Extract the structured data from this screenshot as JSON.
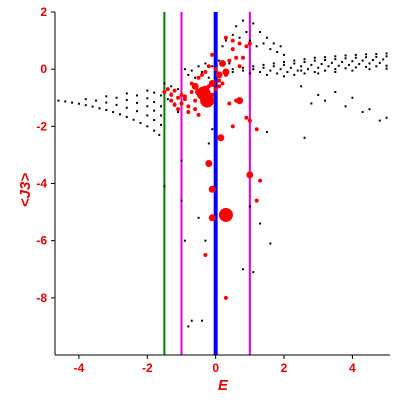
{
  "chart_data": {
    "type": "scatter",
    "xlabel": "E",
    "ylabel": "<J3>",
    "xlim": [
      -4.7,
      5.1
    ],
    "ylim": [
      -10.0,
      2.0
    ],
    "x_ticks": [
      "-4",
      "-2",
      "0",
      "2",
      "4"
    ],
    "x_tick_values": [
      -4,
      -2,
      0,
      2,
      4
    ],
    "y_ticks": [
      "2",
      "0",
      "-2",
      "-4",
      "-6",
      "-8"
    ],
    "y_tick_values": [
      2,
      0,
      -2,
      -4,
      -6,
      -8
    ],
    "vertical_lines": [
      {
        "x": -1.5,
        "color": "#008000"
      },
      {
        "x": -1.0,
        "color": "#dd00dd"
      },
      {
        "x": 0.0,
        "color": "#0000ff"
      },
      {
        "x": 1.0,
        "color": "#dd00dd"
      }
    ],
    "series": [
      {
        "color": "#000000",
        "points": [
          [
            -4.6,
            -1.1
          ],
          [
            -4.4,
            -1.13
          ],
          [
            -4.2,
            -1.17
          ],
          [
            -4.0,
            -1.21
          ],
          [
            -3.8,
            -1.26
          ],
          [
            -3.6,
            -1.31
          ],
          [
            -3.4,
            -1.37
          ],
          [
            -3.2,
            -1.43
          ],
          [
            -3.0,
            -1.5
          ],
          [
            -2.8,
            -1.58
          ],
          [
            -2.6,
            -1.67
          ],
          [
            -2.4,
            -1.77
          ],
          [
            -2.2,
            -1.88
          ],
          [
            -2.0,
            -2.0
          ],
          [
            -1.8,
            -2.15
          ],
          [
            -1.65,
            -2.3
          ],
          [
            -3.8,
            -1.05
          ],
          [
            -3.5,
            -1.1
          ],
          [
            -3.2,
            -1.17
          ],
          [
            -2.9,
            -1.25
          ],
          [
            -2.6,
            -1.35
          ],
          [
            -2.3,
            -1.47
          ],
          [
            -2.0,
            -1.62
          ],
          [
            -1.8,
            -1.78
          ],
          [
            -1.6,
            -1.95
          ],
          [
            -3.2,
            -0.95
          ],
          [
            -2.9,
            -1.0
          ],
          [
            -2.6,
            -1.08
          ],
          [
            -2.3,
            -1.18
          ],
          [
            -2.0,
            -1.3
          ],
          [
            -1.8,
            -1.45
          ],
          [
            -1.6,
            -1.62
          ],
          [
            -2.6,
            -0.85
          ],
          [
            -2.3,
            -0.92
          ],
          [
            -2.0,
            -1.02
          ],
          [
            -1.8,
            -1.15
          ],
          [
            -1.6,
            -1.3
          ],
          [
            -2.0,
            -0.75
          ],
          [
            -1.8,
            -0.82
          ],
          [
            -1.6,
            -0.92
          ],
          [
            -1.4,
            -1.05
          ],
          [
            -1.5,
            -0.5
          ],
          [
            -1.3,
            -0.6
          ],
          [
            -1.1,
            -0.7
          ],
          [
            -1.3,
            -0.85
          ],
          [
            -1.2,
            -1.2
          ],
          [
            -1.1,
            -1.5
          ],
          [
            -0.9,
            0.0
          ],
          [
            -0.8,
            -0.2
          ],
          [
            -0.7,
            -0.05
          ],
          [
            -0.6,
            -0.3
          ],
          [
            -0.5,
            0.1
          ],
          [
            -0.4,
            -0.1
          ],
          [
            -0.3,
            0.2
          ],
          [
            -0.2,
            -0.3
          ],
          [
            -0.1,
            0.1
          ],
          [
            0.1,
            0.3
          ],
          [
            0.2,
            0.8
          ],
          [
            0.3,
            1.0
          ],
          [
            0.4,
            0.2
          ],
          [
            0.5,
            1.2
          ],
          [
            0.6,
            1.5
          ],
          [
            0.7,
            1.1
          ],
          [
            0.8,
            1.7
          ],
          [
            0.9,
            1.3
          ],
          [
            1.0,
            1.0
          ],
          [
            1.1,
            1.6
          ],
          [
            1.2,
            0.8
          ],
          [
            1.3,
            1.3
          ],
          [
            1.4,
            0.9
          ],
          [
            1.5,
            1.1
          ],
          [
            1.6,
            0.7
          ],
          [
            1.7,
            0.9
          ],
          [
            1.8,
            0.6
          ],
          [
            1.9,
            0.8
          ],
          [
            2.0,
            0.5
          ],
          [
            0.5,
            0.0
          ],
          [
            0.8,
            0.05
          ],
          [
            1.1,
            0.1
          ],
          [
            1.4,
            0.15
          ],
          [
            1.7,
            0.2
          ],
          [
            2.0,
            0.25
          ],
          [
            2.3,
            0.3
          ],
          [
            2.6,
            0.35
          ],
          [
            2.9,
            0.4
          ],
          [
            3.2,
            0.42
          ],
          [
            3.5,
            0.45
          ],
          [
            3.8,
            0.48
          ],
          [
            4.1,
            0.5
          ],
          [
            4.4,
            0.52
          ],
          [
            4.7,
            0.53
          ],
          [
            5.0,
            0.55
          ],
          [
            0.5,
            -0.1
          ],
          [
            0.8,
            -0.05
          ],
          [
            1.1,
            0.0
          ],
          [
            1.4,
            0.05
          ],
          [
            1.7,
            0.1
          ],
          [
            2.0,
            0.15
          ],
          [
            2.3,
            0.2
          ],
          [
            2.6,
            0.25
          ],
          [
            2.9,
            0.3
          ],
          [
            3.2,
            0.32
          ],
          [
            3.5,
            0.35
          ],
          [
            3.8,
            0.38
          ],
          [
            4.1,
            0.4
          ],
          [
            4.4,
            0.42
          ],
          [
            4.7,
            0.43
          ],
          [
            5.0,
            0.45
          ],
          [
            1.0,
            -0.15
          ],
          [
            1.3,
            -0.1
          ],
          [
            1.6,
            -0.05
          ],
          [
            1.9,
            0.0
          ],
          [
            2.2,
            0.05
          ],
          [
            2.5,
            0.1
          ],
          [
            2.8,
            0.15
          ],
          [
            3.1,
            0.18
          ],
          [
            3.4,
            0.22
          ],
          [
            3.7,
            0.25
          ],
          [
            4.0,
            0.28
          ],
          [
            4.3,
            0.3
          ],
          [
            4.6,
            0.32
          ],
          [
            4.9,
            0.34
          ],
          [
            1.5,
            -0.2
          ],
          [
            1.8,
            -0.15
          ],
          [
            2.1,
            -0.1
          ],
          [
            2.4,
            -0.05
          ],
          [
            2.7,
            0.0
          ],
          [
            3.0,
            0.05
          ],
          [
            3.3,
            0.1
          ],
          [
            3.6,
            0.12
          ],
          [
            3.9,
            0.15
          ],
          [
            4.2,
            0.18
          ],
          [
            4.5,
            0.2
          ],
          [
            4.8,
            0.22
          ],
          [
            2.0,
            -0.25
          ],
          [
            2.3,
            -0.2
          ],
          [
            2.6,
            -0.15
          ],
          [
            2.9,
            -0.1
          ],
          [
            3.2,
            -0.05
          ],
          [
            3.5,
            0.0
          ],
          [
            3.8,
            0.03
          ],
          [
            4.1,
            0.06
          ],
          [
            4.4,
            0.08
          ],
          [
            4.7,
            0.1
          ],
          [
            5.0,
            0.12
          ],
          [
            2.5,
            -0.05
          ],
          [
            3.0,
            -0.15
          ],
          [
            3.5,
            -0.1
          ],
          [
            4.0,
            -0.05
          ],
          [
            4.5,
            0.0
          ],
          [
            5.0,
            0.02
          ],
          [
            2.5,
            -0.6
          ],
          [
            3.0,
            -0.9
          ],
          [
            3.2,
            -1.1
          ],
          [
            3.5,
            -0.8
          ],
          [
            4.0,
            -1.0
          ],
          [
            4.5,
            -1.4
          ],
          [
            4.8,
            -1.8
          ],
          [
            5.0,
            -1.7
          ],
          [
            2.8,
            -1.2
          ],
          [
            3.8,
            -1.3
          ],
          [
            4.3,
            -1.5
          ],
          [
            2.6,
            -2.4
          ],
          [
            1.5,
            -2.2
          ],
          [
            -0.1,
            -2.1
          ],
          [
            -0.2,
            -2.6
          ],
          [
            -1.5,
            -4.1
          ],
          [
            -1.0,
            -3.2
          ],
          [
            -1.0,
            -4.6
          ],
          [
            -0.9,
            -6.0
          ],
          [
            -0.5,
            -5.2
          ],
          [
            -0.3,
            -6.0
          ],
          [
            -0.7,
            -8.8
          ],
          [
            -0.4,
            -8.8
          ],
          [
            1.0,
            -4.8
          ],
          [
            1.3,
            -5.4
          ],
          [
            1.6,
            -6.1
          ],
          [
            0.8,
            -7.0
          ],
          [
            1.1,
            -7.1
          ],
          [
            -0.8,
            -9.0
          ]
        ]
      },
      {
        "color": "#ff0000",
        "points": [
          [
            -1.5,
            -0.8
          ],
          [
            -1.4,
            -0.7
          ],
          [
            -1.3,
            -0.9
          ],
          [
            -1.2,
            -0.75
          ],
          [
            -1.1,
            -1.0
          ],
          [
            -1.0,
            -1.2
          ],
          [
            -0.9,
            -0.95
          ],
          [
            -0.8,
            -1.3
          ],
          [
            -0.7,
            -0.5
          ],
          [
            -0.6,
            -0.6
          ],
          [
            -0.5,
            -0.3
          ],
          [
            -0.4,
            -0.2
          ],
          [
            -0.3,
            -0.1
          ],
          [
            -0.2,
            0.1
          ],
          [
            -0.1,
            0.5
          ],
          [
            0.0,
            0.0
          ],
          [
            0.1,
            -0.4
          ],
          [
            0.2,
            -0.5
          ],
          [
            0.3,
            -0.2
          ],
          [
            0.4,
            0.3
          ],
          [
            0.5,
            0.7
          ],
          [
            0.6,
            0.4
          ],
          [
            0.7,
            0.1
          ],
          [
            0.8,
            0.4
          ],
          [
            0.9,
            0.8
          ],
          [
            1.0,
            0.9
          ],
          [
            0.3,
            1.1
          ],
          [
            0.5,
            1.0
          ],
          [
            0.7,
            0.9
          ],
          [
            -1.3,
            -1.1
          ],
          [
            -1.2,
            -1.25
          ],
          [
            -1.1,
            -1.4
          ],
          [
            -1.0,
            -0.9
          ],
          [
            -0.9,
            -1.05
          ],
          [
            -0.7,
            -0.8
          ],
          [
            -0.6,
            -1.1
          ],
          [
            -0.5,
            -0.85
          ],
          [
            -0.4,
            -0.95
          ],
          [
            -0.3,
            -1.0
          ],
          [
            -0.2,
            -0.6
          ],
          [
            -0.1,
            -0.9
          ],
          [
            0.0,
            -0.7
          ],
          [
            0.1,
            -0.6
          ],
          [
            0.4,
            -1.2
          ],
          [
            0.6,
            -1.1
          ],
          [
            0.9,
            -1.7
          ],
          [
            1.2,
            -2.1
          ],
          [
            1.3,
            -3.9
          ],
          [
            1.2,
            -4.6
          ],
          [
            -0.3,
            -6.5
          ],
          [
            0.3,
            -8.0
          ],
          [
            -0.8,
            -1.5
          ],
          [
            -0.6,
            -1.4
          ],
          [
            -0.5,
            -1.6
          ],
          [
            0.5,
            -2.0
          ],
          [
            1.0,
            -1.8
          ]
        ]
      },
      {
        "color": "#ff0000",
        "points": [
          [
            -0.6,
            -0.6
          ],
          [
            -0.5,
            -0.8
          ],
          [
            -0.4,
            -0.9
          ],
          [
            -0.3,
            -0.7
          ],
          [
            -0.2,
            -1.0
          ],
          [
            -0.1,
            -0.5
          ],
          [
            0.1,
            -0.2
          ],
          [
            0.2,
            0.2
          ],
          [
            0.3,
            -0.1
          ],
          [
            0.7,
            -1.1
          ],
          [
            0.15,
            -2.4
          ],
          [
            -0.2,
            -3.3
          ],
          [
            -0.1,
            -4.2
          ],
          [
            -0.1,
            -5.2
          ],
          [
            1.0,
            -3.7
          ]
        ]
      },
      {
        "color": "#ff0000",
        "points": [
          [
            -0.35,
            -0.85
          ],
          [
            -0.25,
            -1.1
          ],
          [
            0.3,
            -5.1
          ]
        ]
      }
    ]
  }
}
